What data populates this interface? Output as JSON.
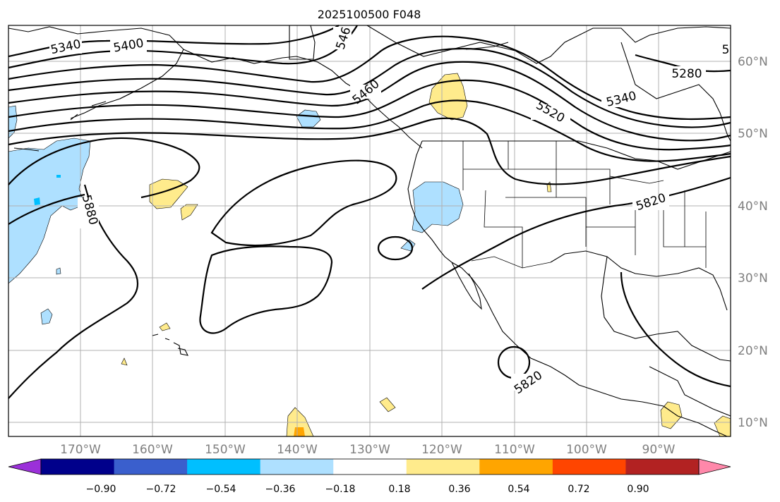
{
  "title": "2025100500 F048",
  "map": {
    "lon_labels": [
      "170°W",
      "160°W",
      "150°W",
      "140°W",
      "130°W",
      "120°W",
      "110°W",
      "100°W",
      "90°W"
    ],
    "lat_labels": [
      "60°N",
      "50°N",
      "40°N",
      "30°N",
      "20°N",
      "10°N"
    ],
    "contour_labels": [
      "5340",
      "5400",
      "546",
      "5460",
      "5520",
      "5280",
      "5340",
      "5880",
      "5820",
      "5820",
      "5"
    ],
    "colors": {
      "positive_small": "#ffeb8c",
      "positive_mid": "#ffa500",
      "negative_small": "#aee0ff",
      "negative_mid": "#00bfff",
      "contour": "#000000",
      "grid": "#b0b0b0"
    }
  },
  "colorbar": {
    "ticks": [
      "−0.90",
      "−0.72",
      "−0.54",
      "−0.36",
      "−0.18",
      "0.18",
      "0.36",
      "0.54",
      "0.72",
      "0.90"
    ],
    "colors": [
      "#9b30d9",
      "#00008b",
      "#3a5fcd",
      "#00bfff",
      "#aee0ff",
      "#ffffff",
      "#ffeb8c",
      "#ffa500",
      "#ff4500",
      "#b22222",
      "#ff88aa"
    ]
  }
}
